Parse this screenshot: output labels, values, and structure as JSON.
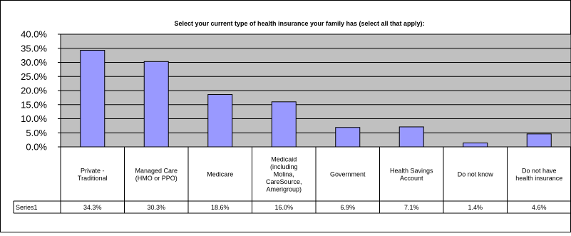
{
  "chart_data": {
    "type": "bar",
    "title": "Select your current type of health insurance your family has (select all that apply):",
    "categories": [
      [
        "Private -",
        "Traditional"
      ],
      [
        "Managed Care",
        "(HMO or PPO)"
      ],
      [
        "Medicare"
      ],
      [
        "Medicaid",
        "(including",
        "Molina,",
        "CareSource,",
        "Amerigroup)"
      ],
      [
        "Government"
      ],
      [
        "Health Savings",
        "Account"
      ],
      [
        "Do not know"
      ],
      [
        "Do not have",
        "health insurance"
      ]
    ],
    "series": [
      {
        "name": "Series1",
        "values": [
          34.3,
          30.3,
          18.6,
          16.0,
          6.9,
          7.1,
          1.4,
          4.6
        ],
        "labels": [
          "34.3%",
          "30.3%",
          "18.6%",
          "16.0%",
          "6.9%",
          "7.1%",
          "1.4%",
          "4.6%"
        ]
      }
    ],
    "ylim": [
      0,
      40
    ],
    "yticks": [
      "40.0%",
      "35.0%",
      "30.0%",
      "25.0%",
      "20.0%",
      "15.0%",
      "10.0%",
      "5.0%",
      "0.0%"
    ],
    "ytick_values": [
      40,
      35,
      30,
      25,
      20,
      15,
      10,
      5,
      0
    ],
    "grid": true,
    "legend": "data-table",
    "colors": {
      "bar_fill": "#9999ff",
      "plot_background": "#c0c0c0",
      "bar_stroke": "#000000",
      "grid": "#000000"
    }
  }
}
